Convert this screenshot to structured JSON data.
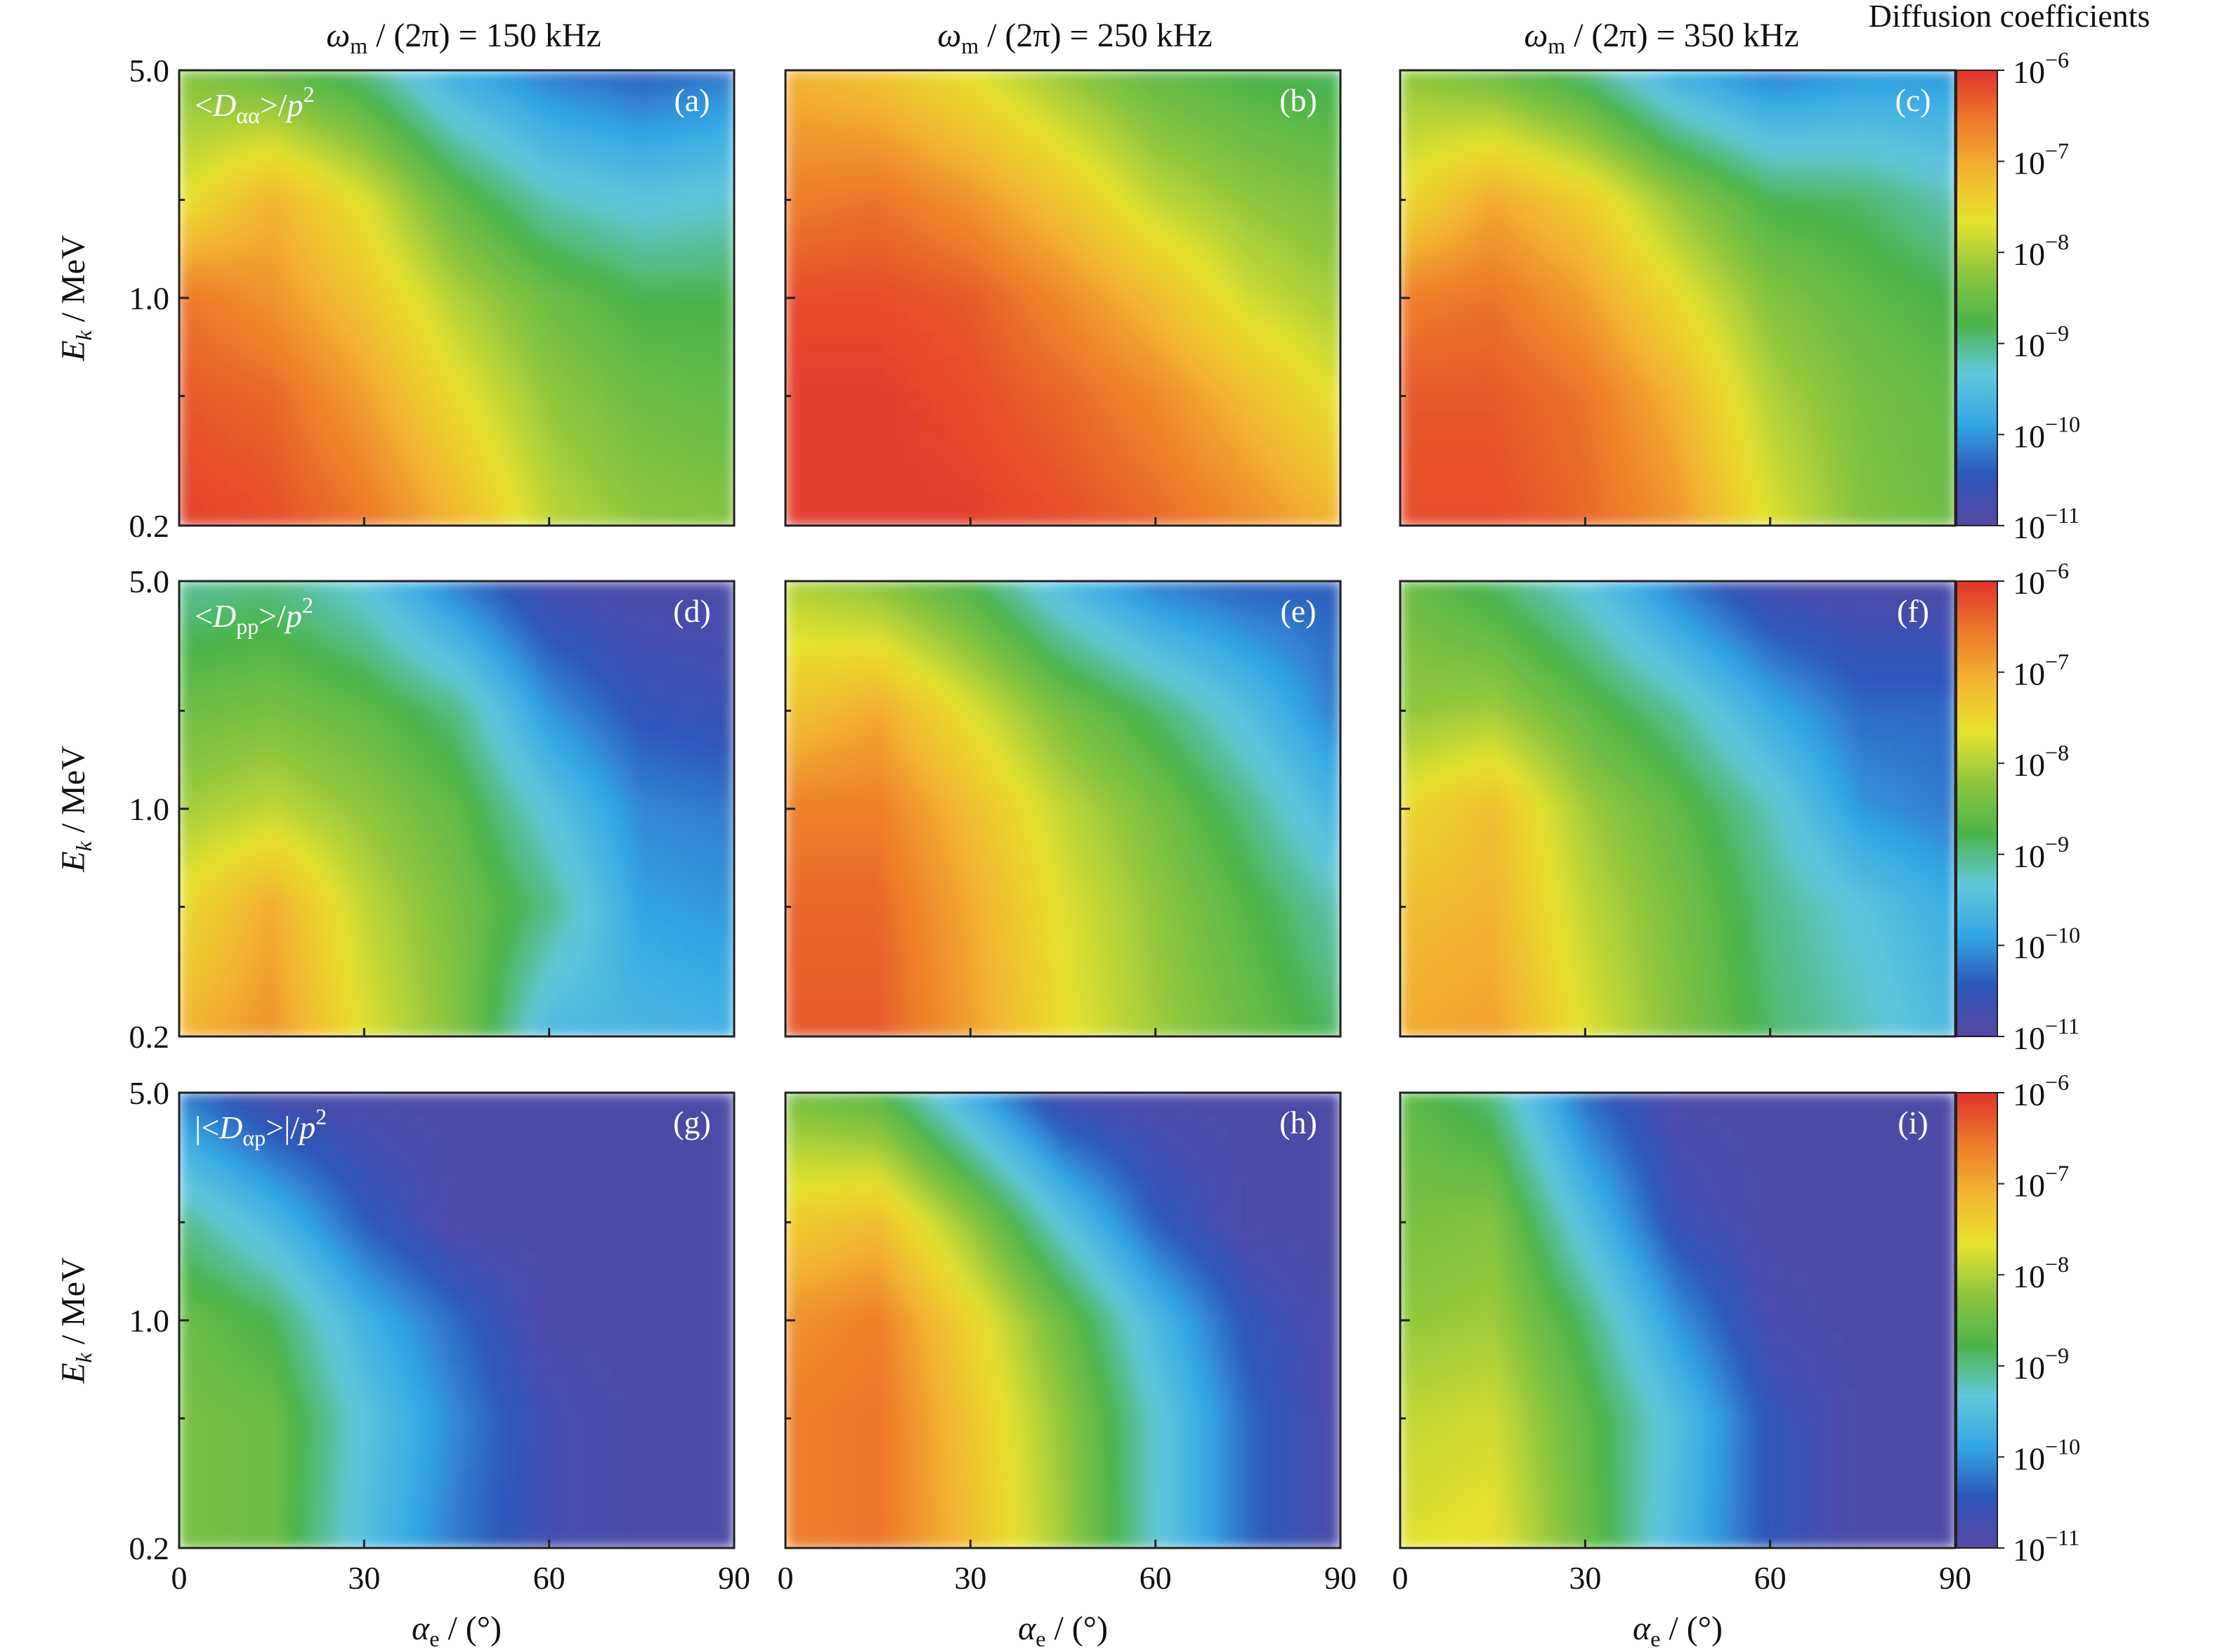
{
  "figure": {
    "column_titles": [
      {
        "omega": "ω",
        "sub": "m",
        "rest": " / (2π) = 150 kHz"
      },
      {
        "omega": "ω",
        "sub": "m",
        "rest": " / (2π) = 250 kHz"
      },
      {
        "omega": "ω",
        "sub": "m",
        "rest": " / (2π) = 350 kHz"
      }
    ],
    "colorbar_title": "Diffusion coefficients",
    "colorbar_ticks": [
      {
        "base": "10",
        "exp": "−6"
      },
      {
        "base": "10",
        "exp": "−7"
      },
      {
        "base": "10",
        "exp": "−8"
      },
      {
        "base": "10",
        "exp": "−9"
      },
      {
        "base": "10",
        "exp": "−10"
      },
      {
        "base": "10",
        "exp": "−11"
      }
    ],
    "row_labels": [
      {
        "pre": "<D",
        "sub": "αα",
        "post": ">/p",
        "sup": "2"
      },
      {
        "pre": "<D",
        "sub": "pp",
        "post": ">/p",
        "sup": "2"
      },
      {
        "pre": "|<D",
        "sub": "αp",
        "post": ">|/p",
        "sup": "2"
      }
    ],
    "panel_letters": [
      "(a)",
      "(d)",
      "(g)",
      "(b)",
      "(e)",
      "(h)",
      "(c)",
      "(f)",
      "(i)"
    ],
    "ylabel": {
      "E": "E",
      "sub": "k",
      "rest": " / MeV"
    },
    "xlabel": {
      "a": "α",
      "sub": "e",
      "rest": " / (°)"
    },
    "y_ticks": [
      "5.0",
      "1.0",
      "0.2"
    ],
    "x_ticks": [
      "0",
      "30",
      "60",
      "90"
    ]
  },
  "colors": {
    "scale": [
      "#5547a3",
      "#2d55b9",
      "#33a6e4",
      "#62c8dc",
      "#4cb44a",
      "#8dc63f",
      "#e6e22e",
      "#f3b630",
      "#ed7a2b",
      "#e0322d"
    ],
    "lowest": "#5547a3",
    "highest": "#e0322d"
  },
  "chart_data": {
    "type": "heatmap",
    "x_axis": {
      "label": "αe / (°)",
      "range": [
        0,
        90
      ],
      "ticks": [
        0,
        30,
        60,
        90
      ]
    },
    "y_axis": {
      "label": "Ek / MeV",
      "scale": "log",
      "range": [
        0.2,
        5.0
      ],
      "ticks": [
        0.2,
        1.0,
        5.0
      ]
    },
    "colorbar": {
      "title": "Diffusion coefficients",
      "scale": "log",
      "range": [
        1e-11,
        1e-06
      ]
    },
    "alpha_samples_deg": [
      0,
      15,
      30,
      45,
      60,
      75,
      90
    ],
    "Ek_samples_MeV": [
      5.0,
      2.0,
      1.0,
      0.5,
      0.2
    ],
    "panels": [
      {
        "panel": "(a)",
        "quantity": "<Dαα>/p2",
        "omega_kHz": 150,
        "log10_values": [
          [
            -8.3,
            -8.6,
            -9.0,
            -9.8,
            -10.2,
            -10.4,
            -10.2
          ],
          [
            -7.7,
            -7.1,
            -7.7,
            -8.6,
            -9.2,
            -9.4,
            -9.3
          ],
          [
            -6.5,
            -6.8,
            -7.3,
            -8.0,
            -8.5,
            -8.8,
            -8.8
          ],
          [
            -6.3,
            -6.4,
            -6.9,
            -7.6,
            -8.2,
            -8.5,
            -8.6
          ],
          [
            -6.1,
            -6.2,
            -6.5,
            -7.1,
            -7.9,
            -8.2,
            -8.3
          ]
        ]
      },
      {
        "panel": "(d)",
        "quantity": "<Dαα>/p2",
        "omega_kHz": 250,
        "log10_values": [
          [
            -9.1,
            -9.0,
            -9.4,
            -10.2,
            -10.8,
            -10.9,
            -10.9
          ],
          [
            -8.5,
            -8.4,
            -8.6,
            -9.0,
            -10.0,
            -10.5,
            -10.6
          ],
          [
            -8.1,
            -7.9,
            -8.2,
            -8.6,
            -9.4,
            -10.1,
            -10.2
          ],
          [
            -7.6,
            -7.0,
            -7.9,
            -8.4,
            -9.0,
            -9.9,
            -10.0
          ],
          [
            -7.1,
            -6.8,
            -7.7,
            -8.3,
            -9.6,
            -9.6,
            -9.7
          ]
        ]
      },
      {
        "panel": "(g)",
        "quantity": "<Dαα>/p2",
        "omega_kHz": 350,
        "log10_values": [
          [
            -10.2,
            -10.8,
            -10.9,
            -10.9,
            -10.9,
            -10.9,
            -10.9
          ],
          [
            -9.0,
            -9.6,
            -10.4,
            -10.9,
            -10.9,
            -10.9,
            -10.9
          ],
          [
            -8.5,
            -8.8,
            -9.7,
            -10.3,
            -10.9,
            -10.9,
            -10.9
          ],
          [
            -8.4,
            -8.5,
            -9.4,
            -10.1,
            -10.7,
            -10.9,
            -10.9
          ],
          [
            -8.4,
            -8.5,
            -9.5,
            -10.2,
            -10.7,
            -10.9,
            -10.9
          ]
        ]
      },
      {
        "panel": "(b)",
        "quantity": "<Dpp>/p2",
        "omega_kHz": 150,
        "log10_values": [
          [
            -7.1,
            -7.3,
            -7.7,
            -8.2,
            -8.6,
            -8.8,
            -8.9
          ],
          [
            -6.6,
            -6.5,
            -6.8,
            -7.3,
            -7.9,
            -8.2,
            -8.4
          ],
          [
            -6.2,
            -6.2,
            -6.3,
            -6.7,
            -7.2,
            -7.8,
            -8.1
          ],
          [
            -6.1,
            -6.1,
            -6.2,
            -6.4,
            -6.7,
            -7.2,
            -7.7
          ],
          [
            -6.1,
            -6.1,
            -6.1,
            -6.2,
            -6.4,
            -6.7,
            -7.1
          ]
        ]
      },
      {
        "panel": "(e)",
        "quantity": "<Dpp>/p2",
        "omega_kHz": 250,
        "log10_values": [
          [
            -8.0,
            -8.3,
            -8.8,
            -9.6,
            -10.2,
            -10.4,
            -10.4
          ],
          [
            -7.3,
            -7.0,
            -7.7,
            -8.4,
            -8.9,
            -9.5,
            -10.2
          ],
          [
            -6.6,
            -6.6,
            -7.2,
            -7.9,
            -8.4,
            -9.0,
            -9.7
          ],
          [
            -6.4,
            -6.4,
            -7.0,
            -7.7,
            -8.2,
            -8.7,
            -9.2
          ],
          [
            -6.3,
            -6.3,
            -6.9,
            -7.6,
            -8.1,
            -8.5,
            -8.9
          ]
        ]
      },
      {
        "panel": "(h)",
        "quantity": "<Dpp>/p2",
        "omega_kHz": 350,
        "log10_values": [
          [
            -8.4,
            -8.7,
            -9.8,
            -10.8,
            -10.9,
            -10.9,
            -10.9
          ],
          [
            -7.4,
            -7.2,
            -8.2,
            -9.4,
            -10.4,
            -10.9,
            -10.9
          ],
          [
            -6.8,
            -6.6,
            -7.5,
            -8.5,
            -9.6,
            -10.5,
            -10.9
          ],
          [
            -6.6,
            -6.5,
            -7.3,
            -8.2,
            -9.3,
            -10.3,
            -10.9
          ],
          [
            -6.6,
            -6.5,
            -7.2,
            -8.1,
            -9.3,
            -10.3,
            -10.9
          ]
        ]
      },
      {
        "panel": "(c)",
        "quantity": "|<Dαp>|/p2",
        "omega_kHz": 150,
        "log10_values": [
          [
            -8.2,
            -8.5,
            -9.0,
            -9.8,
            -10.2,
            -10.0,
            -10.0
          ],
          [
            -7.6,
            -7.0,
            -7.4,
            -8.2,
            -8.8,
            -8.9,
            -9.2
          ],
          [
            -6.6,
            -6.5,
            -6.9,
            -7.6,
            -8.3,
            -8.6,
            -8.8
          ],
          [
            -6.3,
            -6.3,
            -6.5,
            -7.1,
            -8.0,
            -8.4,
            -8.6
          ],
          [
            -6.2,
            -6.2,
            -6.4,
            -6.8,
            -7.7,
            -8.3,
            -8.5
          ]
        ]
      },
      {
        "panel": "(f)",
        "quantity": "|<Dαp>|/p2",
        "omega_kHz": 250,
        "log10_values": [
          [
            -8.5,
            -8.9,
            -9.4,
            -10.2,
            -10.8,
            -10.9,
            -10.9
          ],
          [
            -8.2,
            -8.1,
            -8.6,
            -9.1,
            -9.8,
            -10.3,
            -10.3
          ],
          [
            -7.6,
            -7.2,
            -8.1,
            -8.6,
            -9.2,
            -10.0,
            -10.2
          ],
          [
            -7.2,
            -7.1,
            -7.9,
            -8.4,
            -9.0,
            -9.4,
            -9.8
          ],
          [
            -7.0,
            -6.9,
            -7.7,
            -8.3,
            -8.9,
            -9.2,
            -9.6
          ]
        ]
      },
      {
        "panel": "(i)",
        "quantity": "|<Dαp>|/p2",
        "omega_kHz": 350,
        "log10_values": [
          [
            -8.6,
            -9.0,
            -10.3,
            -10.9,
            -10.9,
            -10.9,
            -10.9
          ],
          [
            -8.4,
            -8.3,
            -9.5,
            -10.6,
            -10.9,
            -10.9,
            -10.9
          ],
          [
            -8.2,
            -8.1,
            -8.9,
            -10.0,
            -10.8,
            -10.9,
            -10.9
          ],
          [
            -7.9,
            -7.8,
            -8.6,
            -9.5,
            -10.5,
            -10.9,
            -10.9
          ],
          [
            -7.7,
            -7.6,
            -8.5,
            -9.6,
            -10.5,
            -10.9,
            -10.9
          ]
        ]
      }
    ]
  }
}
